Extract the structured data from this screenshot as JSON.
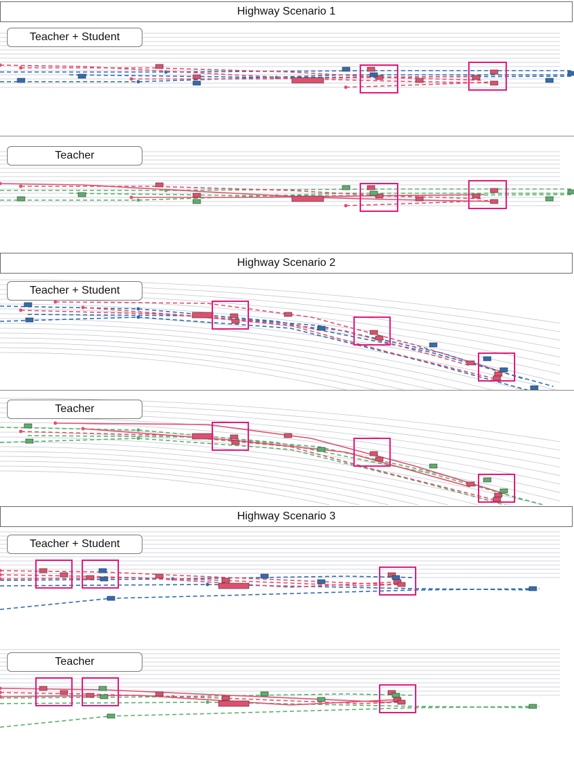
{
  "scenarios": [
    {
      "title": "Highway Scenario 1",
      "panels": [
        {
          "label": "Teacher + Student",
          "policy_color": "#2f6db0"
        },
        {
          "label": "Teacher",
          "policy_color": "#5bb06a"
        }
      ]
    },
    {
      "title": "Highway Scenario 2",
      "panels": [
        {
          "label": "Teacher + Student",
          "policy_color": "#2f6db0"
        },
        {
          "label": "Teacher",
          "policy_color": "#5bb06a"
        }
      ]
    },
    {
      "title": "Highway Scenario 3",
      "panels": [
        {
          "label": "Teacher + Student",
          "policy_color": "#2f6db0"
        },
        {
          "label": "Teacher",
          "policy_color": "#5bb06a"
        }
      ]
    }
  ],
  "colors": {
    "ego_vehicle": "#e0506e",
    "highlight_box": "#e6197a",
    "lane_lines": "#c4c8d0"
  }
}
